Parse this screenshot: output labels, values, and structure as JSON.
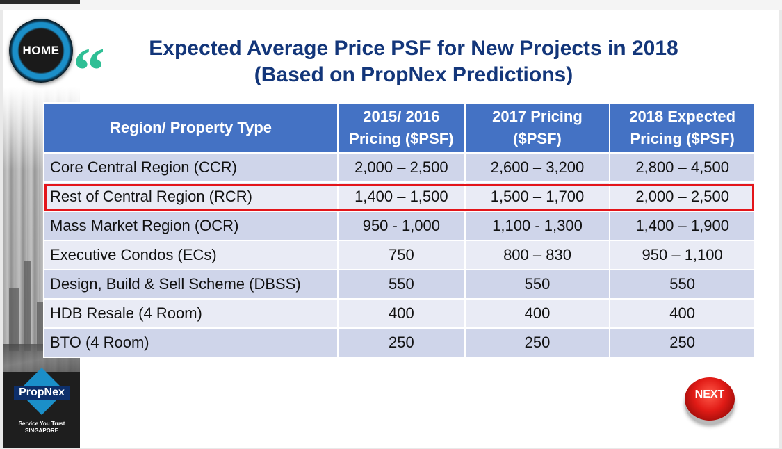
{
  "nav": {
    "home_label": "HOME",
    "next_label": "NEXT"
  },
  "title": {
    "line1": "Expected Average Price PSF for New Projects in 2018",
    "line2": "(Based on PropNex Predictions)"
  },
  "table": {
    "headers": [
      "Region/ Property Type",
      "2015/ 2016 Pricing ($PSF)",
      "2017 Pricing ($PSF)",
      "2018 Expected Pricing ($PSF)"
    ],
    "rows": [
      [
        "Core Central Region (CCR)",
        "2,000 – 2,500",
        "2,600 – 3,200",
        "2,800 – 4,500"
      ],
      [
        "Rest of Central Region (RCR)",
        "1,400 – 1,500",
        "1,500 – 1,700",
        "2,000 – 2,500"
      ],
      [
        "Mass Market Region (OCR)",
        "950 - 1,000",
        "1,100 - 1,300",
        "1,400 – 1,900"
      ],
      [
        "Executive Condos (ECs)",
        "750",
        "800 – 830",
        "950 – 1,100"
      ],
      [
        "Design, Build & Sell Scheme (DBSS)",
        "550",
        "550",
        "550"
      ],
      [
        "HDB Resale (4 Room)",
        "400",
        "400",
        "400"
      ],
      [
        "BTO (4 Room)",
        "250",
        "250",
        "250"
      ]
    ]
  },
  "logo": {
    "brand": "PropNex",
    "tagline": "Service You Trust",
    "country": "SINGAPORE"
  },
  "colors": {
    "header_blue": "#4472c4",
    "title_navy": "#13367a",
    "highlight_red": "#e3151a",
    "quote_green": "#2fbf95"
  }
}
